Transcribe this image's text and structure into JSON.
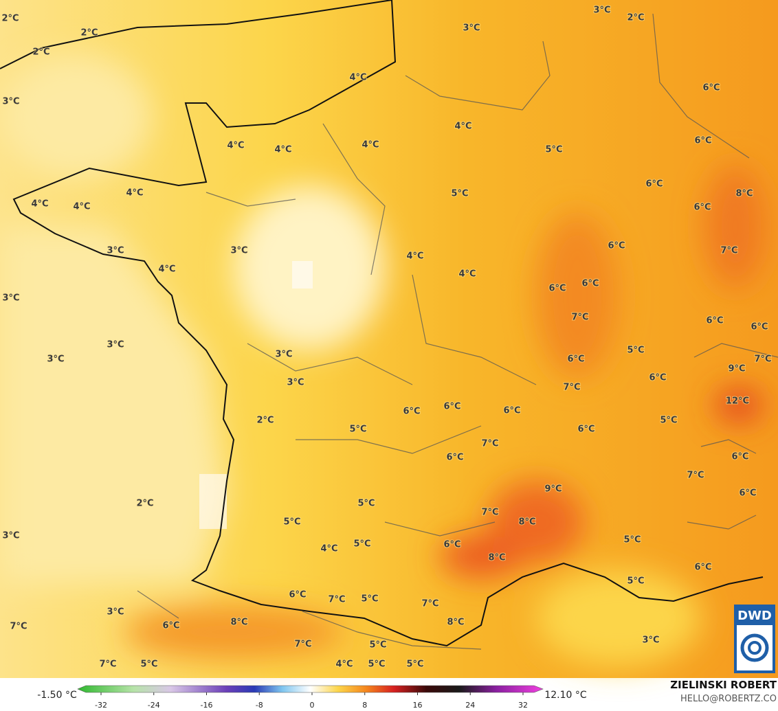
{
  "map": {
    "labels": [
      "2°C",
      "2°C",
      "2°C",
      "3°C",
      "3°C",
      "2°C",
      "4°C",
      "3°C",
      "6°C",
      "4°C",
      "4°C",
      "4°C",
      "4°C",
      "5°C",
      "6°C",
      "4°C",
      "4°C",
      "4°C",
      "5°C",
      "6°C",
      "8°C",
      "6°C",
      "3°C",
      "3°C",
      "4°C",
      "6°C",
      "7°C",
      "4°C",
      "4°C",
      "6°C",
      "6°C",
      "3°C",
      "7°C",
      "6°C",
      "6°C",
      "3°C",
      "3°C",
      "3°C",
      "5°C",
      "6°C",
      "7°C",
      "9°C",
      "6°C",
      "3°C",
      "7°C",
      "12°C",
      "6°C",
      "6°C",
      "6°C",
      "2°C",
      "5°C",
      "5°C",
      "6°C",
      "7°C",
      "6°C",
      "6°C",
      "7°C",
      "9°C",
      "6°C",
      "2°C",
      "5°C",
      "7°C",
      "8°C",
      "5°C",
      "3°C",
      "4°C",
      "5°C",
      "6°C",
      "5°C",
      "8°C",
      "6°C",
      "5°C",
      "6°C",
      "7°C",
      "5°C",
      "7°C",
      "3°C",
      "7°C",
      "6°C",
      "8°C",
      "8°C",
      "7°C",
      "5°C",
      "3°C",
      "7°C",
      "5°C",
      "4°C",
      "5°C",
      "5°C"
    ]
  },
  "legend": {
    "min": "-1.50 °C",
    "max": "12.10 °C",
    "ticks": [
      -32,
      -24,
      -16,
      -8,
      0,
      8,
      16,
      24,
      32
    ]
  },
  "branding": {
    "logo": "DWD",
    "author": "ZIELINSKI ROBERT",
    "contact": "HELLO@ROBERTZ.CO"
  }
}
